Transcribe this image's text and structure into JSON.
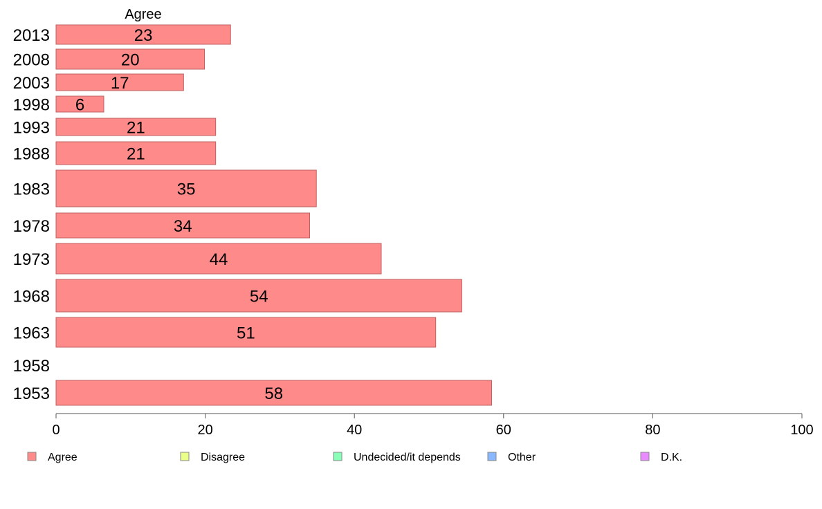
{
  "chart_data": {
    "type": "bar",
    "orientation": "horizontal",
    "series_title": "Agree",
    "categories": [
      "2013",
      "2008",
      "2003",
      "1998",
      "1993",
      "1988",
      "1983",
      "1978",
      "1973",
      "1968",
      "1963",
      "1958",
      "1953"
    ],
    "series": [
      {
        "name": "Agree",
        "values": [
          23.4,
          19.9,
          17.1,
          6.4,
          21.4,
          21.4,
          34.9,
          34.0,
          43.6,
          54.4,
          50.9,
          null,
          58.4
        ],
        "labels": [
          "23",
          "20",
          "17",
          "6",
          "21",
          "21",
          "35",
          "34",
          "44",
          "54",
          "51",
          "",
          "58"
        ]
      }
    ],
    "xlim": [
      0,
      100
    ],
    "xticks": [
      "0",
      "20",
      "40",
      "60",
      "80",
      "100"
    ],
    "grid": false,
    "legend": {
      "position": "bottom",
      "items": [
        {
          "label": "Agree",
          "color": "#ff8a8a"
        },
        {
          "label": "Disagree",
          "color": "#eaff8a"
        },
        {
          "label": "Undecided/it depends",
          "color": "#8affb8"
        },
        {
          "label": "Other",
          "color": "#8ab8ff"
        },
        {
          "label": "D.K.",
          "color": "#ea8aff"
        }
      ]
    },
    "bar_color": "#ff8a8a",
    "bar_border": "#c06060"
  }
}
